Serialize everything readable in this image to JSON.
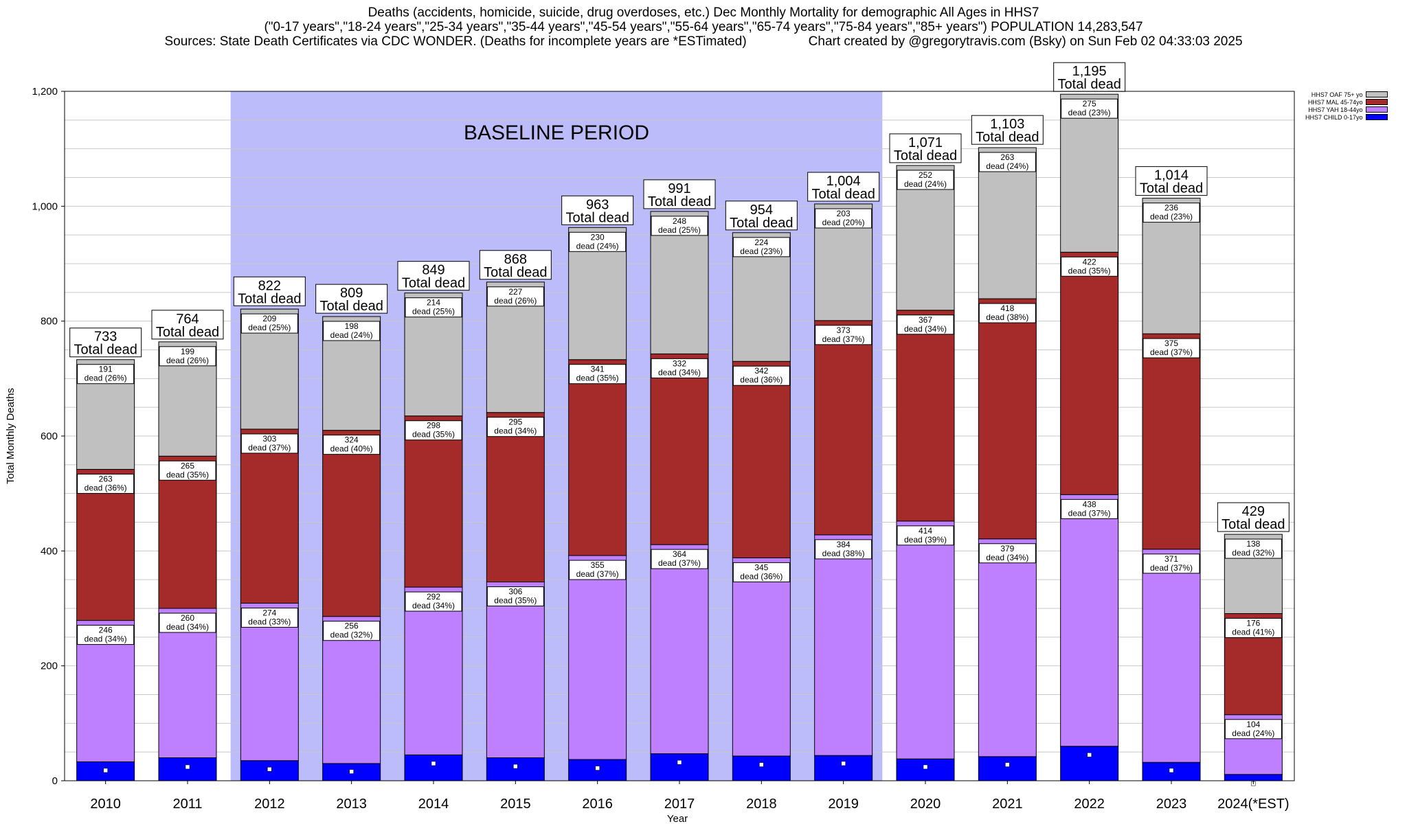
{
  "header": {
    "line1": "Deaths (accidents, homicide, suicide, drug overdoses, etc.) Dec Monthly Mortality for demographic All Ages in HHS7",
    "line2": "(\"0-17 years\",\"18-24 years\",\"25-34 years\",\"35-44 years\",\"45-54 years\",\"55-64 years\",\"65-74 years\",\"75-84 years\",\"85+ years\") POPULATION 14,283,547",
    "line3_left": "Sources: State Death Certificates via CDC WONDER. (Deaths for incomplete years are *ESTimated)",
    "line3_right": "Chart created by @gregorytravis.com (Bsky) on Sun Feb 02 04:33:03 2025"
  },
  "chart_data": {
    "type": "bar",
    "stacked": true,
    "xlabel": "Year",
    "ylabel": "Total Monthly Deaths",
    "ylim": [
      0,
      1200
    ],
    "yticks": [
      0,
      200,
      400,
      600,
      800,
      1000,
      1200
    ],
    "ytick_labels": [
      "0",
      "200",
      "400",
      "600",
      "800",
      "1,000",
      "1,200"
    ],
    "grid": true,
    "legend_position": "top-right",
    "baseline_label": "BASELINE PERIOD",
    "baseline_range": [
      "2012",
      "2019"
    ],
    "total_suffix": "Total dead",
    "segment_suffix": "dead",
    "categories": [
      "2010",
      "2011",
      "2012",
      "2013",
      "2014",
      "2015",
      "2016",
      "2017",
      "2018",
      "2019",
      "2020",
      "2021",
      "2022",
      "2023",
      "2024(*EST)"
    ],
    "totals": [
      733,
      764,
      822,
      809,
      849,
      868,
      963,
      991,
      954,
      1004,
      1071,
      1103,
      1195,
      1014,
      429
    ],
    "total_labels": [
      "733",
      "764",
      "822",
      "809",
      "849",
      "868",
      "963",
      "991",
      "954",
      "1,004",
      "1,071",
      "1,103",
      "1,195",
      "1,014",
      "429"
    ],
    "child_marker_values": [
      18,
      24,
      20,
      16,
      30,
      25,
      22,
      32,
      28,
      30,
      24,
      28,
      45,
      18,
      -5
    ],
    "series": [
      {
        "name": "HHS7 CHILD 0-17yo",
        "color": "#0000ff",
        "values": [
          33,
          40,
          35,
          30,
          45,
          40,
          37,
          47,
          43,
          44,
          38,
          42,
          60,
          32,
          11
        ]
      },
      {
        "name": "HHS7 YAH 18-44yo",
        "color": "#bf80ff",
        "values": [
          246,
          260,
          274,
          256,
          292,
          306,
          355,
          364,
          345,
          384,
          414,
          379,
          438,
          371,
          104
        ],
        "pct": [
          "34%",
          "34%",
          "33%",
          "32%",
          "34%",
          "35%",
          "37%",
          "37%",
          "36%",
          "38%",
          "39%",
          "34%",
          "37%",
          "37%",
          "24%"
        ]
      },
      {
        "name": "HHS7 MAL 45-74yo",
        "color": "#a52a2a",
        "values": [
          263,
          265,
          303,
          324,
          298,
          295,
          341,
          332,
          342,
          373,
          367,
          418,
          422,
          375,
          176
        ],
        "pct": [
          "36%",
          "35%",
          "37%",
          "40%",
          "35%",
          "34%",
          "35%",
          "34%",
          "36%",
          "37%",
          "34%",
          "38%",
          "35%",
          "37%",
          "41%"
        ]
      },
      {
        "name": "HHS7 OAF 75+ yo",
        "color": "#c0c0c0",
        "values": [
          191,
          199,
          209,
          198,
          214,
          227,
          230,
          248,
          224,
          203,
          252,
          263,
          275,
          236,
          138
        ],
        "pct": [
          "26%",
          "26%",
          "25%",
          "24%",
          "25%",
          "26%",
          "24%",
          "25%",
          "23%",
          "20%",
          "24%",
          "24%",
          "23%",
          "23%",
          "32%"
        ]
      }
    ]
  }
}
